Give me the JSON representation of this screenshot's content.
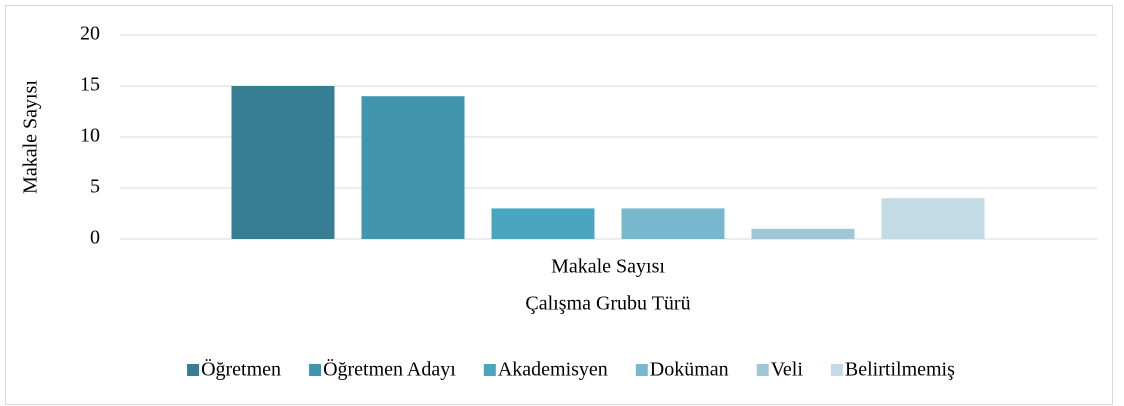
{
  "chart_data": {
    "type": "bar",
    "ylabel": "Makale Sayısı",
    "xlabel": "Çalışma Grubu Türü",
    "categories": [
      "Makale Sayısı"
    ],
    "series": [
      {
        "name": "Öğretmen",
        "color": "#367e93",
        "values": [
          15
        ]
      },
      {
        "name": "Öğretmen Adayı",
        "color": "#4295ae",
        "values": [
          14
        ]
      },
      {
        "name": "Akademisyen",
        "color": "#4aa5c0",
        "values": [
          3
        ]
      },
      {
        "name": "Doküman",
        "color": "#78b8cf",
        "values": [
          3
        ]
      },
      {
        "name": "Veli",
        "color": "#9fc7d8",
        "values": [
          1
        ]
      },
      {
        "name": "Belirtilmemiş",
        "color": "#c3dbe4",
        "values": [
          4
        ]
      }
    ],
    "ylim": [
      0,
      20
    ],
    "yticks": [
      0,
      5,
      10,
      15,
      20
    ],
    "grid": true,
    "legend": "bottom"
  }
}
